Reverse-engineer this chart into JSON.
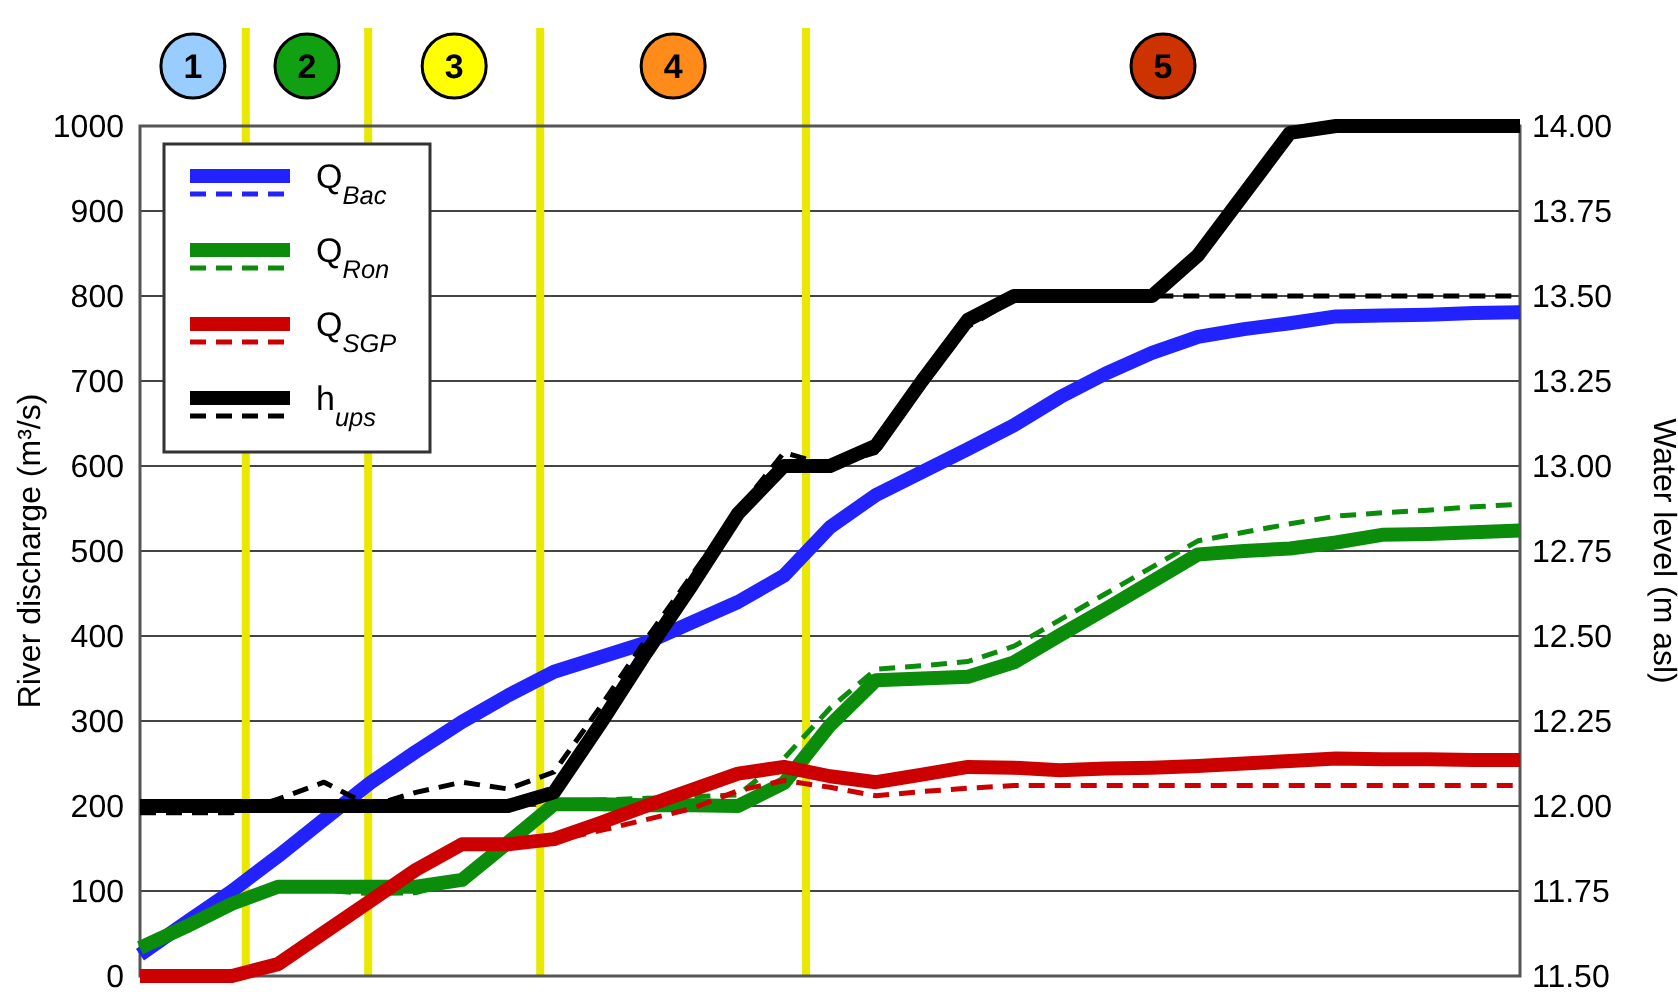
{
  "chart_data": {
    "type": "line",
    "ylabel": "River discharge (m³/s)",
    "y2label": "Water level (m asl)",
    "categories": [
      null,
      null,
      null,
      null,
      null,
      null,
      null,
      null,
      null,
      null,
      null,
      null,
      null,
      null,
      null,
      null,
      null,
      null,
      null,
      null,
      null,
      null,
      null,
      null,
      null,
      null,
      null,
      null,
      null,
      null,
      null
    ],
    "ylim": [
      0,
      1000
    ],
    "yticks": [
      0,
      100,
      200,
      300,
      400,
      500,
      600,
      700,
      800,
      900,
      1000
    ],
    "y2lim": [
      11.5,
      14
    ],
    "y2ticks": [
      {
        "value": 11.5,
        "label": "11.50"
      },
      {
        "value": 11.75,
        "label": "11.75"
      },
      {
        "value": 12,
        "label": "12.00"
      },
      {
        "value": 12.25,
        "label": "12.25"
      },
      {
        "value": 12.5,
        "label": "12.50"
      },
      {
        "value": 12.75,
        "label": "12.75"
      },
      {
        "value": 13,
        "label": "13.00"
      },
      {
        "value": 13.25,
        "label": "13.25"
      },
      {
        "value": 13.5,
        "label": "13.50"
      },
      {
        "value": 13.75,
        "label": "13.75"
      },
      {
        "value": 14,
        "label": "14.00"
      }
    ],
    "grid": "y",
    "legend": "top left",
    "series": [
      {
        "name": "Q$_{Bac}$",
        "color": "#2222ff",
        "line_style": "solid",
        "values": [
          25,
          63,
          100,
          141,
          184,
          227,
          264,
          299,
          330,
          358,
          375,
          392,
          416,
          440,
          471,
          528,
          566,
          593,
          620,
          648,
          681,
          709,
          733,
          752,
          761,
          768,
          776,
          777,
          778,
          780,
          781
        ]
      },
      {
        "color": "#2222ff",
        "line_style": "dashed",
        "values": [
          null,
          null,
          null,
          null,
          null,
          null,
          null,
          null,
          null,
          null,
          null,
          null,
          null,
          null,
          null,
          null,
          null,
          null,
          null,
          null,
          null,
          null,
          null,
          null,
          null,
          null,
          null,
          null,
          null,
          null,
          null
        ]
      },
      {
        "name": "Q$_{Ron}$",
        "color": "#0b8c0b",
        "line_style": "solid",
        "values": [
          33,
          58,
          85,
          105,
          105,
          105,
          105,
          113,
          157,
          202,
          202,
          201,
          201,
          200,
          227,
          295,
          348,
          350,
          352,
          369,
          401,
          432,
          464,
          496,
          500,
          503,
          510,
          519,
          520,
          522,
          524
        ]
      },
      {
        "color": "#0b8c0b",
        "line_style": "dashed",
        "values": [
          33,
          58,
          85,
          104,
          101,
          97,
          98,
          113,
          159,
          205,
          207,
          209,
          211,
          213,
          256,
          315,
          361,
          365,
          370,
          388,
          419,
          450,
          481,
          512,
          522,
          532,
          541,
          545,
          548,
          552,
          555
        ]
      },
      {
        "name": "Q$_{SGP}$",
        "color": "#cc0000",
        "line_style": "solid",
        "values": [
          0,
          0,
          0,
          14,
          51,
          88,
          125,
          155,
          155,
          161,
          180,
          200,
          219,
          238,
          246,
          235,
          228,
          237,
          246,
          245,
          242,
          244,
          245,
          247,
          250,
          253,
          256,
          255,
          255,
          254,
          254
        ]
      },
      {
        "color": "#cc0000",
        "line_style": "dashed",
        "values": [
          0,
          0,
          0,
          14,
          51,
          88,
          125,
          155,
          155,
          159,
          171,
          184,
          197,
          218,
          230,
          222,
          212,
          217,
          221,
          224,
          224,
          224,
          224,
          224,
          224,
          224,
          224,
          224,
          224,
          224,
          224
        ]
      },
      {
        "name": "h$_{ups}$",
        "color": "#000000",
        "line_style": "solid",
        "axis": "y2",
        "values": [
          12,
          12,
          12,
          12,
          12,
          12,
          12,
          12,
          12,
          12.04,
          12.24,
          12.45,
          12.65,
          12.86,
          13,
          13,
          13.06,
          13.25,
          13.43,
          13.5,
          13.5,
          13.5,
          13.5,
          13.62,
          13.8,
          13.98,
          14,
          14,
          14,
          14,
          14
        ]
      },
      {
        "color": "#000000",
        "line_style": "dashed",
        "axis": "y2",
        "values": [
          11.98,
          11.98,
          11.98,
          12.02,
          12.07,
          12,
          12.04,
          12.07,
          12.05,
          12.1,
          12.29,
          12.49,
          12.68,
          12.87,
          13.04,
          13,
          13.04,
          13.23,
          13.41,
          13.49,
          13.5,
          13.5,
          13.5,
          13.5,
          13.5,
          13.5,
          13.5,
          13.5,
          13.5,
          13.5,
          13.5
        ]
      }
    ],
    "annotations": [
      "1",
      "2",
      "3",
      "4",
      "5"
    ]
  }
}
